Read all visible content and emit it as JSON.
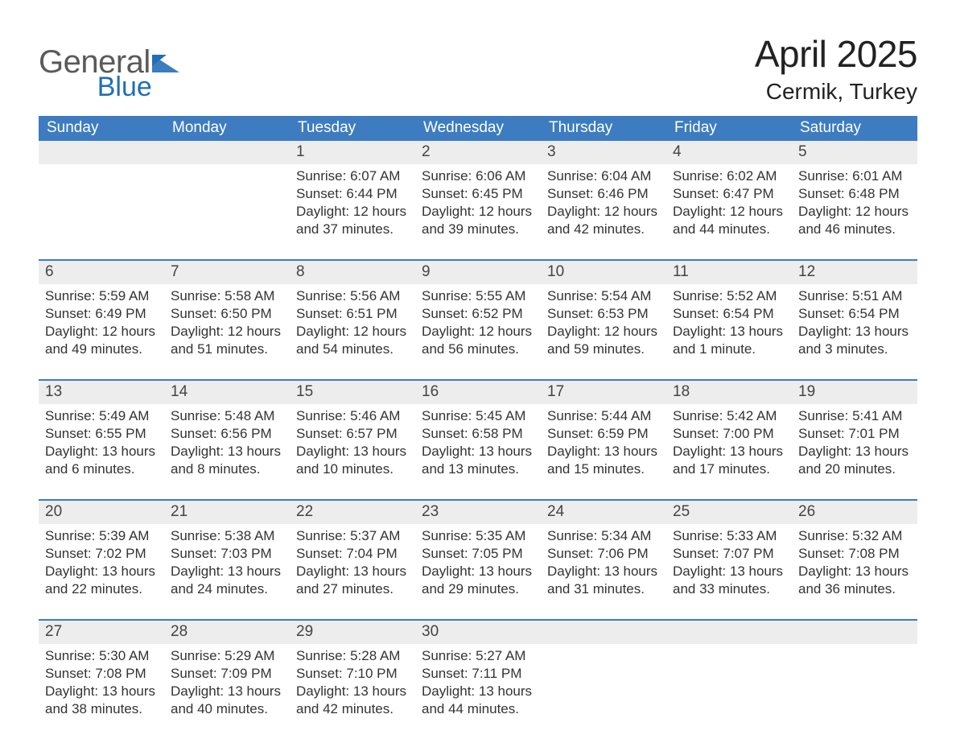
{
  "brand": {
    "word1": "General",
    "word2": "Blue"
  },
  "title": {
    "month": "April 2025",
    "location": "Cermik, Turkey"
  },
  "colors": {
    "header_blue": "#3d7cc0",
    "accent_blue": "#1f6fb6",
    "logo_gray": "#5a5a5a",
    "text": "#333333",
    "cell_header_bg": "#ededed"
  },
  "weekdays": [
    "Sunday",
    "Monday",
    "Tuesday",
    "Wednesday",
    "Thursday",
    "Friday",
    "Saturday"
  ],
  "labels": {
    "sunrise": "Sunrise:",
    "sunset": "Sunset:",
    "daylight": "Daylight:"
  },
  "weeks": [
    [
      null,
      null,
      {
        "n": "1",
        "sunrise": "6:07 AM",
        "sunset": "6:44 PM",
        "daylight": "12 hours and 37 minutes."
      },
      {
        "n": "2",
        "sunrise": "6:06 AM",
        "sunset": "6:45 PM",
        "daylight": "12 hours and 39 minutes."
      },
      {
        "n": "3",
        "sunrise": "6:04 AM",
        "sunset": "6:46 PM",
        "daylight": "12 hours and 42 minutes."
      },
      {
        "n": "4",
        "sunrise": "6:02 AM",
        "sunset": "6:47 PM",
        "daylight": "12 hours and 44 minutes."
      },
      {
        "n": "5",
        "sunrise": "6:01 AM",
        "sunset": "6:48 PM",
        "daylight": "12 hours and 46 minutes."
      }
    ],
    [
      {
        "n": "6",
        "sunrise": "5:59 AM",
        "sunset": "6:49 PM",
        "daylight": "12 hours and 49 minutes."
      },
      {
        "n": "7",
        "sunrise": "5:58 AM",
        "sunset": "6:50 PM",
        "daylight": "12 hours and 51 minutes."
      },
      {
        "n": "8",
        "sunrise": "5:56 AM",
        "sunset": "6:51 PM",
        "daylight": "12 hours and 54 minutes."
      },
      {
        "n": "9",
        "sunrise": "5:55 AM",
        "sunset": "6:52 PM",
        "daylight": "12 hours and 56 minutes."
      },
      {
        "n": "10",
        "sunrise": "5:54 AM",
        "sunset": "6:53 PM",
        "daylight": "12 hours and 59 minutes."
      },
      {
        "n": "11",
        "sunrise": "5:52 AM",
        "sunset": "6:54 PM",
        "daylight": "13 hours and 1 minute."
      },
      {
        "n": "12",
        "sunrise": "5:51 AM",
        "sunset": "6:54 PM",
        "daylight": "13 hours and 3 minutes."
      }
    ],
    [
      {
        "n": "13",
        "sunrise": "5:49 AM",
        "sunset": "6:55 PM",
        "daylight": "13 hours and 6 minutes."
      },
      {
        "n": "14",
        "sunrise": "5:48 AM",
        "sunset": "6:56 PM",
        "daylight": "13 hours and 8 minutes."
      },
      {
        "n": "15",
        "sunrise": "5:46 AM",
        "sunset": "6:57 PM",
        "daylight": "13 hours and 10 minutes."
      },
      {
        "n": "16",
        "sunrise": "5:45 AM",
        "sunset": "6:58 PM",
        "daylight": "13 hours and 13 minutes."
      },
      {
        "n": "17",
        "sunrise": "5:44 AM",
        "sunset": "6:59 PM",
        "daylight": "13 hours and 15 minutes."
      },
      {
        "n": "18",
        "sunrise": "5:42 AM",
        "sunset": "7:00 PM",
        "daylight": "13 hours and 17 minutes."
      },
      {
        "n": "19",
        "sunrise": "5:41 AM",
        "sunset": "7:01 PM",
        "daylight": "13 hours and 20 minutes."
      }
    ],
    [
      {
        "n": "20",
        "sunrise": "5:39 AM",
        "sunset": "7:02 PM",
        "daylight": "13 hours and 22 minutes."
      },
      {
        "n": "21",
        "sunrise": "5:38 AM",
        "sunset": "7:03 PM",
        "daylight": "13 hours and 24 minutes."
      },
      {
        "n": "22",
        "sunrise": "5:37 AM",
        "sunset": "7:04 PM",
        "daylight": "13 hours and 27 minutes."
      },
      {
        "n": "23",
        "sunrise": "5:35 AM",
        "sunset": "7:05 PM",
        "daylight": "13 hours and 29 minutes."
      },
      {
        "n": "24",
        "sunrise": "5:34 AM",
        "sunset": "7:06 PM",
        "daylight": "13 hours and 31 minutes."
      },
      {
        "n": "25",
        "sunrise": "5:33 AM",
        "sunset": "7:07 PM",
        "daylight": "13 hours and 33 minutes."
      },
      {
        "n": "26",
        "sunrise": "5:32 AM",
        "sunset": "7:08 PM",
        "daylight": "13 hours and 36 minutes."
      }
    ],
    [
      {
        "n": "27",
        "sunrise": "5:30 AM",
        "sunset": "7:08 PM",
        "daylight": "13 hours and 38 minutes."
      },
      {
        "n": "28",
        "sunrise": "5:29 AM",
        "sunset": "7:09 PM",
        "daylight": "13 hours and 40 minutes."
      },
      {
        "n": "29",
        "sunrise": "5:28 AM",
        "sunset": "7:10 PM",
        "daylight": "13 hours and 42 minutes."
      },
      {
        "n": "30",
        "sunrise": "5:27 AM",
        "sunset": "7:11 PM",
        "daylight": "13 hours and 44 minutes."
      },
      null,
      null,
      null
    ]
  ]
}
